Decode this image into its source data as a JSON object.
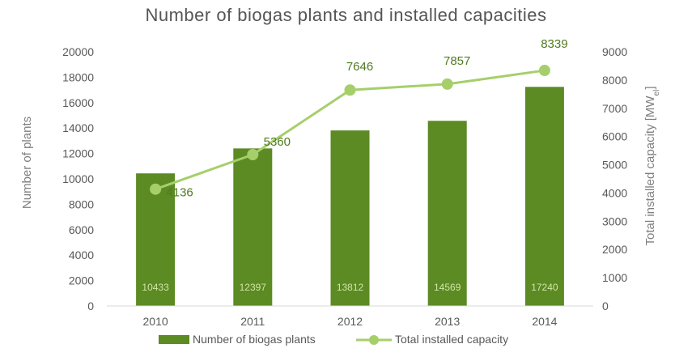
{
  "chart_data": {
    "type": "bar",
    "title": "Number of biogas plants and installed capacities",
    "categories": [
      "2010",
      "2011",
      "2012",
      "2013",
      "2014"
    ],
    "series": [
      {
        "name": "Number of biogas plants",
        "type": "bar",
        "axis": "left",
        "values": [
          10433,
          12397,
          13812,
          14569,
          17240
        ],
        "data_labels": [
          "10433",
          "12397",
          "13812",
          "14569",
          "17240"
        ],
        "color": "#5c8a23"
      },
      {
        "name": "Total installed capacity",
        "type": "line",
        "axis": "right",
        "values": [
          4136,
          5360,
          7646,
          7857,
          8339
        ],
        "data_labels": [
          "4136",
          "5360",
          "7646",
          "7857",
          "8339"
        ],
        "color": "#a6cf6b"
      }
    ],
    "ylabel": "Number of plants",
    "ylim": [
      0,
      20000
    ],
    "yticks": [
      "0",
      "2000",
      "4000",
      "6000",
      "8000",
      "10000",
      "12000",
      "14000",
      "16000",
      "18000",
      "20000"
    ],
    "y2label_main": "Total installed capacity [MW",
    "y2label_sub": "el",
    "y2label_end": "]",
    "y2lim": [
      0,
      9000
    ],
    "y2ticks": [
      "0",
      "1000",
      "2000",
      "3000",
      "4000",
      "5000",
      "6000",
      "7000",
      "8000",
      "9000"
    ],
    "grid": false,
    "legend_position": "bottom"
  }
}
